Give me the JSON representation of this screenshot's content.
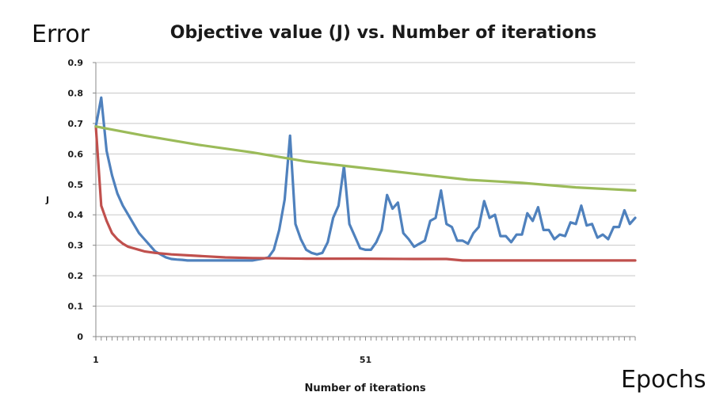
{
  "annotations": {
    "left": "Error",
    "right": "Epochs"
  },
  "chart_data": {
    "type": "line",
    "title": "Objective value (J) vs. Number of iterations",
    "xlabel": "Number of iterations",
    "ylabel": "J",
    "xlim": [
      1,
      101
    ],
    "ylim": [
      0,
      0.9
    ],
    "yticks": [
      0,
      0.1,
      0.2,
      0.3,
      0.4,
      0.5,
      0.6,
      0.7,
      0.8,
      0.9
    ],
    "ytick_labels": [
      "0",
      "0.1",
      "0.2",
      "0.3",
      "0.4",
      "0.5",
      "0.6",
      "0.7",
      "0.8",
      "0.9"
    ],
    "xtick_labels": [
      {
        "x": 1,
        "label": "1"
      },
      {
        "x": 51,
        "label": "51"
      }
    ],
    "grid": true,
    "legend": "none",
    "colors": {
      "blue": "#4f81bd",
      "red": "#c0504d",
      "green": "#9bbb59"
    },
    "series": [
      {
        "color": "#4f81bd",
        "points": [
          [
            1,
            0.69
          ],
          [
            2,
            0.785
          ],
          [
            3,
            0.61
          ],
          [
            4,
            0.53
          ],
          [
            5,
            0.47
          ],
          [
            6,
            0.43
          ],
          [
            7,
            0.4
          ],
          [
            8,
            0.37
          ],
          [
            9,
            0.34
          ],
          [
            10,
            0.32
          ],
          [
            11,
            0.3
          ],
          [
            12,
            0.28
          ],
          [
            13,
            0.27
          ],
          [
            14,
            0.26
          ],
          [
            15,
            0.255
          ],
          [
            16,
            0.253
          ],
          [
            17,
            0.252
          ],
          [
            18,
            0.25
          ],
          [
            20,
            0.25
          ],
          [
            25,
            0.25
          ],
          [
            30,
            0.25
          ],
          [
            31,
            0.253
          ],
          [
            32,
            0.256
          ],
          [
            33,
            0.26
          ],
          [
            34,
            0.285
          ],
          [
            35,
            0.35
          ],
          [
            36,
            0.45
          ],
          [
            37,
            0.66
          ],
          [
            38,
            0.37
          ],
          [
            39,
            0.32
          ],
          [
            40,
            0.285
          ],
          [
            41,
            0.275
          ],
          [
            42,
            0.27
          ],
          [
            43,
            0.275
          ],
          [
            44,
            0.31
          ],
          [
            45,
            0.39
          ],
          [
            46,
            0.43
          ],
          [
            47,
            0.56
          ],
          [
            48,
            0.37
          ],
          [
            49,
            0.33
          ],
          [
            50,
            0.29
          ],
          [
            51,
            0.285
          ],
          [
            52,
            0.285
          ],
          [
            53,
            0.31
          ],
          [
            54,
            0.35
          ],
          [
            55,
            0.465
          ],
          [
            56,
            0.42
          ],
          [
            57,
            0.44
          ],
          [
            58,
            0.34
          ],
          [
            59,
            0.32
          ],
          [
            60,
            0.295
          ],
          [
            61,
            0.305
          ],
          [
            62,
            0.315
          ],
          [
            63,
            0.38
          ],
          [
            64,
            0.39
          ],
          [
            65,
            0.48
          ],
          [
            66,
            0.37
          ],
          [
            67,
            0.36
          ],
          [
            68,
            0.315
          ],
          [
            69,
            0.315
          ],
          [
            70,
            0.305
          ],
          [
            71,
            0.34
          ],
          [
            72,
            0.36
          ],
          [
            73,
            0.445
          ],
          [
            74,
            0.39
          ],
          [
            75,
            0.4
          ],
          [
            76,
            0.33
          ],
          [
            77,
            0.33
          ],
          [
            78,
            0.31
          ],
          [
            79,
            0.335
          ],
          [
            80,
            0.335
          ],
          [
            81,
            0.405
          ],
          [
            82,
            0.38
          ],
          [
            83,
            0.425
          ],
          [
            84,
            0.35
          ],
          [
            85,
            0.35
          ],
          [
            86,
            0.32
          ],
          [
            87,
            0.335
          ],
          [
            88,
            0.33
          ],
          [
            89,
            0.375
          ],
          [
            90,
            0.37
          ],
          [
            91,
            0.43
          ],
          [
            92,
            0.365
          ],
          [
            93,
            0.37
          ],
          [
            94,
            0.325
          ],
          [
            95,
            0.335
          ],
          [
            96,
            0.32
          ],
          [
            97,
            0.36
          ],
          [
            98,
            0.36
          ],
          [
            99,
            0.415
          ],
          [
            100,
            0.37
          ],
          [
            101,
            0.39
          ]
        ]
      },
      {
        "color": "#c0504d",
        "points": [
          [
            1,
            0.69
          ],
          [
            2,
            0.43
          ],
          [
            3,
            0.38
          ],
          [
            4,
            0.34
          ],
          [
            5,
            0.32
          ],
          [
            6,
            0.305
          ],
          [
            7,
            0.295
          ],
          [
            8,
            0.29
          ],
          [
            9,
            0.285
          ],
          [
            10,
            0.28
          ],
          [
            12,
            0.275
          ],
          [
            15,
            0.27
          ],
          [
            20,
            0.265
          ],
          [
            25,
            0.26
          ],
          [
            30,
            0.258
          ],
          [
            35,
            0.257
          ],
          [
            40,
            0.256
          ],
          [
            50,
            0.256
          ],
          [
            60,
            0.255
          ],
          [
            66,
            0.255
          ],
          [
            69,
            0.25
          ],
          [
            80,
            0.25
          ],
          [
            101,
            0.25
          ]
        ]
      },
      {
        "color": "#9bbb59",
        "points": [
          [
            1,
            0.69
          ],
          [
            10,
            0.66
          ],
          [
            20,
            0.63
          ],
          [
            30,
            0.605
          ],
          [
            40,
            0.575
          ],
          [
            50,
            0.555
          ],
          [
            60,
            0.535
          ],
          [
            70,
            0.515
          ],
          [
            80,
            0.505
          ],
          [
            90,
            0.49
          ],
          [
            101,
            0.48
          ]
        ]
      }
    ]
  }
}
